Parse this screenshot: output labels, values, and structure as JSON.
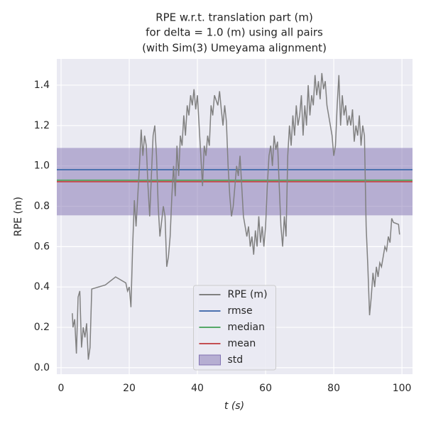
{
  "chart_data": {
    "type": "line",
    "title": [
      "RPE w.r.t. translation part (m)",
      "for delta = 1.0 (m) using all pairs",
      "(with Sim(3) Umeyama alignment)"
    ],
    "xlabel": "t (s)",
    "ylabel": "RPE (m)",
    "xlim": [
      -1.25,
      103.1
    ],
    "ylim": [
      -0.032,
      1.53
    ],
    "xticks": [
      0,
      20,
      40,
      60,
      80,
      100
    ],
    "yticks": [
      {
        "value": 0,
        "label": "0.0"
      },
      0.2,
      0.4,
      0.6,
      0.8,
      {
        "value": 1,
        "label": "1.0"
      },
      1.2,
      1.4
    ],
    "grid": true,
    "legend": "lower center",
    "series": [
      {
        "name": "RPE (m)",
        "color": "#808080",
        "x": [
          3.3,
          3.5,
          4,
          4.5,
          5,
          5.5,
          6,
          6.5,
          7,
          7.5,
          8,
          8.5,
          9,
          13,
          16,
          19,
          19.5,
          20,
          20.5,
          21,
          21.5,
          22,
          23,
          23.5,
          24,
          24.5,
          25,
          25.5,
          26,
          27,
          27.5,
          28,
          28.5,
          29,
          30,
          30.5,
          31,
          31.5,
          32,
          32.5,
          33,
          33.5,
          34,
          34.5,
          35,
          35.5,
          36,
          36.5,
          37,
          37.5,
          38,
          38.5,
          39,
          39.5,
          40,
          40.5,
          41,
          41.5,
          42,
          42.5,
          43,
          43.5,
          44,
          44.5,
          45,
          46,
          46.5,
          47,
          47.5,
          48,
          48.5,
          49,
          49.5,
          50,
          50.5,
          51,
          51.5,
          52,
          52.5,
          53,
          53.5,
          54,
          54.5,
          55,
          55.5,
          56,
          56.5,
          57,
          57.5,
          58,
          58.5,
          59,
          59.5,
          60,
          60.5,
          61,
          61.5,
          62,
          62.5,
          63,
          63.5,
          64,
          64.5,
          65,
          65.5,
          66,
          66.5,
          67,
          67.5,
          68,
          68.5,
          69,
          69.5,
          70,
          70.5,
          71,
          71.5,
          72,
          72.5,
          73,
          73.5,
          74,
          74.5,
          75,
          75.5,
          76,
          76.5,
          77,
          77.5,
          78,
          78.5,
          79,
          79.5,
          80,
          80.5,
          81,
          81.5,
          82,
          82.5,
          83,
          83.5,
          84,
          84.5,
          85,
          85.5,
          86,
          86.5,
          87,
          87.5,
          88,
          88.5,
          89,
          89.5,
          90,
          90.5,
          91,
          91.5,
          92,
          92.5,
          93,
          93.5,
          94,
          94.5,
          95,
          95.5,
          96,
          96.5,
          97,
          97.5,
          99,
          99.3
        ],
        "values": [
          0.27,
          0.2,
          0.24,
          0.07,
          0.35,
          0.38,
          0.1,
          0.2,
          0.15,
          0.22,
          0.04,
          0.1,
          0.39,
          0.41,
          0.45,
          0.42,
          0.38,
          0.4,
          0.3,
          0.6,
          0.83,
          0.7,
          1.0,
          1.18,
          1.05,
          1.15,
          1.1,
          0.9,
          0.75,
          1.15,
          1.2,
          1.05,
          0.8,
          0.65,
          0.8,
          0.75,
          0.5,
          0.55,
          0.65,
          0.85,
          1.0,
          0.85,
          1.1,
          0.95,
          1.15,
          1.1,
          1.25,
          1.15,
          1.3,
          1.25,
          1.35,
          1.3,
          1.38,
          1.28,
          1.35,
          1.2,
          1.05,
          0.9,
          1.1,
          1.05,
          1.15,
          1.1,
          1.3,
          1.25,
          1.35,
          1.3,
          1.37,
          1.28,
          1.2,
          1.3,
          1.22,
          1.0,
          0.85,
          0.75,
          0.8,
          0.9,
          1.0,
          0.95,
          1.05,
          0.9,
          0.75,
          0.7,
          0.65,
          0.7,
          0.6,
          0.65,
          0.56,
          0.68,
          0.6,
          0.75,
          0.62,
          0.7,
          0.6,
          0.7,
          0.9,
          1.05,
          1.1,
          1.0,
          1.15,
          1.08,
          1.12,
          0.9,
          0.7,
          0.6,
          0.75,
          0.65,
          1.05,
          1.2,
          1.1,
          1.25,
          1.15,
          1.3,
          1.2,
          1.25,
          1.35,
          1.15,
          1.3,
          1.2,
          1.4,
          1.25,
          1.35,
          1.3,
          1.45,
          1.35,
          1.42,
          1.33,
          1.46,
          1.38,
          1.42,
          1.3,
          1.25,
          1.2,
          1.15,
          1.05,
          1.1,
          1.3,
          1.45,
          1.2,
          1.35,
          1.25,
          1.3,
          1.2,
          1.25,
          1.2,
          1.28,
          1.12,
          1.2,
          1.15,
          1.25,
          1.1,
          1.2,
          1.15,
          0.7,
          0.5,
          0.26,
          0.35,
          0.47,
          0.4,
          0.5,
          0.45,
          0.52,
          0.5,
          0.55,
          0.6,
          0.58,
          0.65,
          0.62,
          0.74,
          0.72,
          0.71,
          0.66
        ]
      }
    ],
    "stats": [
      {
        "name": "rmse",
        "color": "#4c72b0",
        "value": 0.981
      },
      {
        "name": "median",
        "color": "#55a868",
        "value": 0.929
      },
      {
        "name": "mean",
        "color": "#c44e52",
        "value": 0.922
      },
      {
        "name": "std",
        "color": "#8172b2",
        "value": 0.167
      }
    ]
  }
}
